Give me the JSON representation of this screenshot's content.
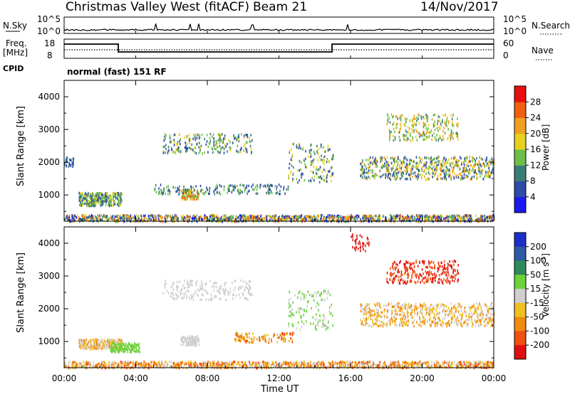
{
  "header": {
    "title": "Christmas Valley West (fitACF)",
    "beam": "Beam 21",
    "date": "14/Nov/2017"
  },
  "panels": {
    "nsky": {
      "label": "N.Sky",
      "ticks_left": [
        "10^5",
        "10^0"
      ],
      "ticks_right": [
        "10^5",
        "10^0"
      ],
      "right_label": "N.Search"
    },
    "freq": {
      "label_line1": "Freq.",
      "label_line2": "[MHz]",
      "ticks_left": [
        "18",
        "8"
      ],
      "ticks_right": [
        "60",
        "0"
      ],
      "right_label": "Nave"
    },
    "cpid": {
      "label": "CPID",
      "value": "normal (fast) 151 RF"
    }
  },
  "chart_data": [
    {
      "type": "heatmap",
      "panel": "power",
      "ylabel": "Slant Range [km]",
      "ylim": [
        200,
        4500
      ],
      "yticks": [
        "1000",
        "2000",
        "3000",
        "4000"
      ],
      "xlim": [
        "00:00",
        "24:00"
      ],
      "colorbar": {
        "label": "Power [dB]",
        "ticks": [
          "4",
          "8",
          "12",
          "16",
          "20",
          "24",
          "28"
        ],
        "colors": [
          "#1a1aee",
          "#2c4aa8",
          "#3a7d78",
          "#6bbf4a",
          "#e8d020",
          "#f0a020",
          "#f06010",
          "#e81010"
        ]
      }
    },
    {
      "type": "heatmap",
      "panel": "velocity",
      "ylabel": "Slant Range [km]",
      "ylim": [
        200,
        4500
      ],
      "yticks": [
        "1000",
        "2000",
        "3000",
        "4000"
      ],
      "xlim": [
        "00:00",
        "24:00"
      ],
      "colorbar": {
        "label": "Velocity [m s",
        "label_sup": "-1",
        "label_end": "]",
        "ticks": [
          "200",
          "100",
          "50",
          "15",
          "-15",
          "-50",
          "-100",
          "-200"
        ],
        "colors": [
          "#1a30c8",
          "#2c5aa8",
          "#2f8a5a",
          "#6cd23a",
          "#cfcfcf",
          "#f0c020",
          "#f08a10",
          "#f05010",
          "#e01010"
        ]
      }
    }
  ],
  "xaxis": {
    "label": "Time UT",
    "ticks": [
      "00:00",
      "04:00",
      "08:00",
      "12:00",
      "16:00",
      "20:00",
      "00:00"
    ]
  }
}
